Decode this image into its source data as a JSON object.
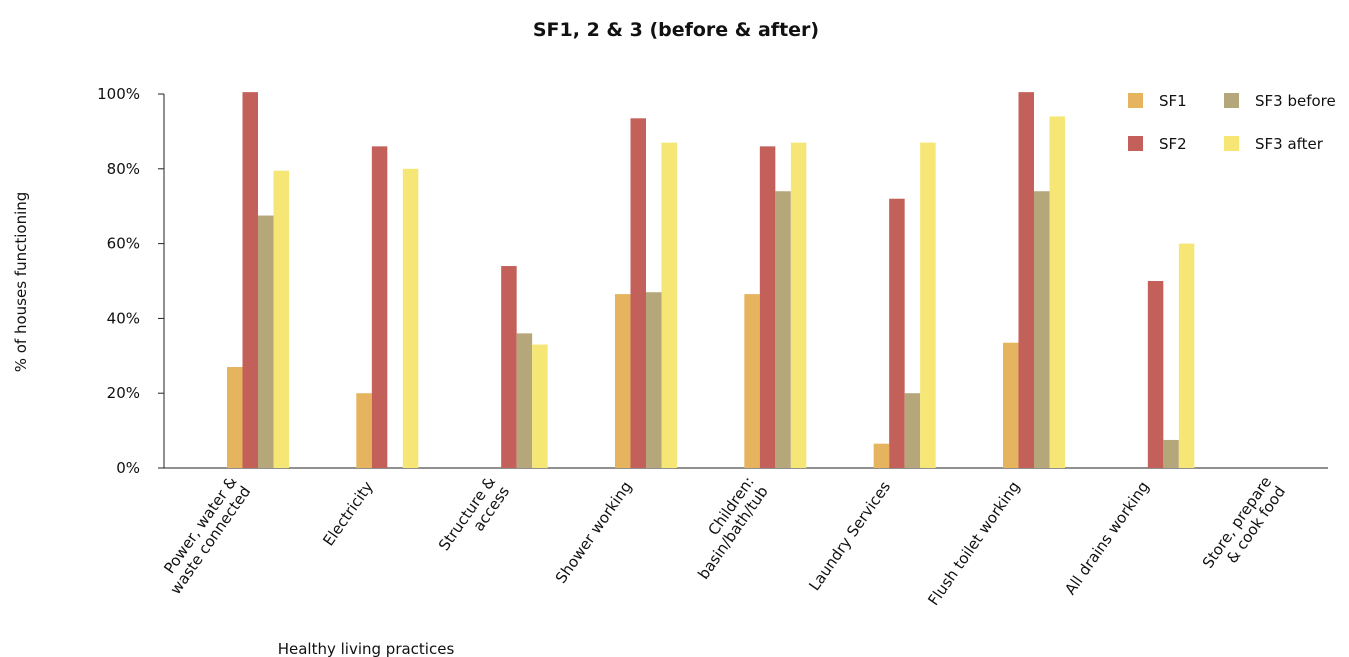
{
  "chart_data": {
    "type": "bar",
    "title": "SF1, 2 & 3 (before & after)",
    "xlabel": "Healthy living practices",
    "ylabel": "% of houses functioning",
    "ylim": [
      0,
      100
    ],
    "yticks": [
      "0%",
      "20%",
      "40%",
      "60%",
      "80%",
      "100%"
    ],
    "grid": false,
    "legend_position": "top-right",
    "categories": [
      [
        "Power, water &",
        "waste connected"
      ],
      [
        "Electricity"
      ],
      [
        "Structure &",
        "access"
      ],
      [
        "Shower working"
      ],
      [
        "Children:",
        "basin/bath/tub"
      ],
      [
        "Laundry Services"
      ],
      [
        "Flush toilet working"
      ],
      [
        "All drains working"
      ],
      [
        "Store, prepare",
        "& cook food"
      ]
    ],
    "series": [
      {
        "name": "SF1",
        "color": "#E6B35F",
        "values": [
          27,
          20,
          0,
          46.5,
          46.5,
          6.5,
          33.5,
          0,
          0
        ]
      },
      {
        "name": "SF2",
        "color": "#C4605A",
        "values": [
          100.5,
          86,
          54,
          93.5,
          86,
          72,
          100.5,
          50,
          0
        ]
      },
      {
        "name": "SF3 before",
        "color": "#B5A77A",
        "values": [
          67.5,
          0,
          36,
          47,
          74,
          20,
          74,
          7.5,
          0
        ]
      },
      {
        "name": "SF3 after",
        "color": "#F5E676",
        "values": [
          79.5,
          80,
          33,
          87,
          87,
          87,
          94,
          60,
          0
        ]
      }
    ]
  }
}
